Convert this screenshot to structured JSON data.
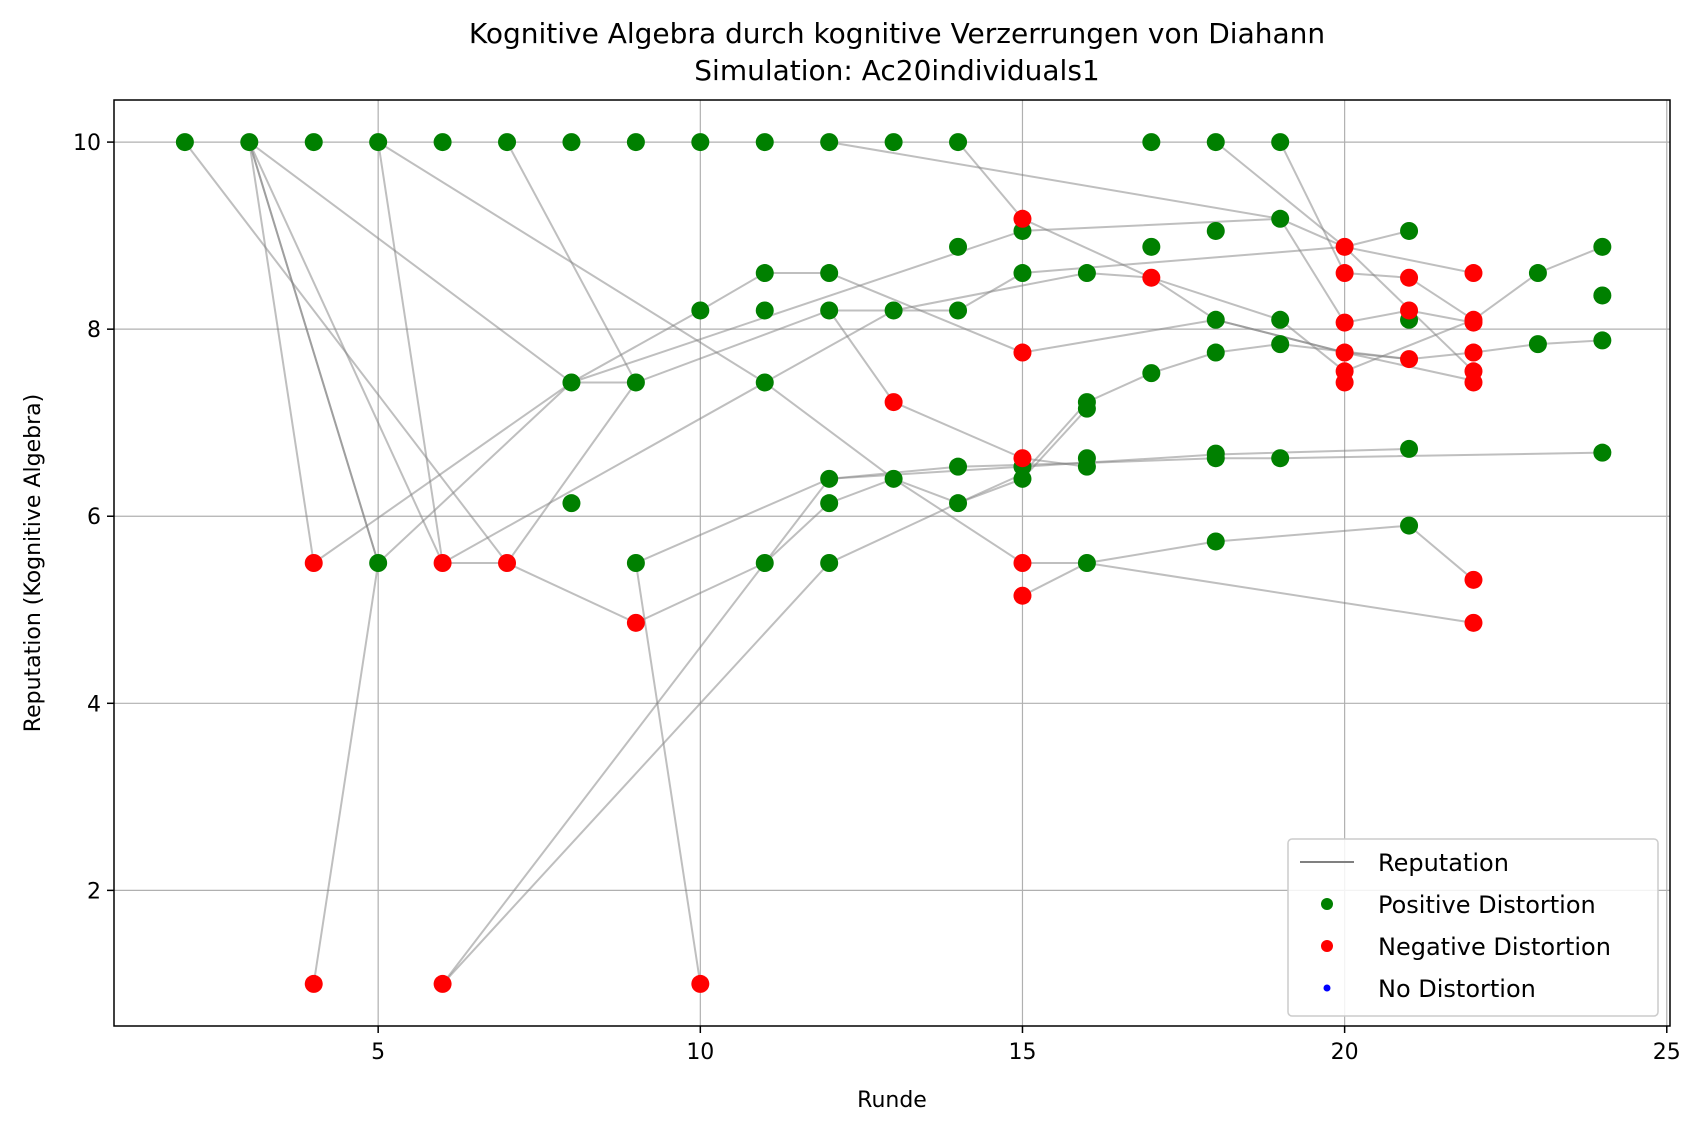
{
  "chart_data": {
    "type": "scatter",
    "title": "Kognitive Algebra durch kognitive Verzerrungen von Diahann",
    "subtitle": "Simulation: Ac20individuals1",
    "xlabel": "Runde",
    "ylabel": "Reputation (Kognitive Algebra)",
    "xlim": [
      0.9,
      25.05
    ],
    "ylim": [
      0.55,
      10.45
    ],
    "xticks": [
      5,
      10,
      15,
      20,
      25
    ],
    "yticks": [
      2,
      4,
      6,
      8,
      10
    ],
    "grid": true,
    "legend_position": "lower right",
    "legend": [
      {
        "label": "Reputation",
        "kind": "line",
        "color": "#808080"
      },
      {
        "label": "Positive Distortion",
        "kind": "marker",
        "color": "#008000"
      },
      {
        "label": "Negative Distortion",
        "kind": "marker",
        "color": "#ff0000"
      },
      {
        "label": "No Distortion",
        "kind": "marker-small",
        "color": "#0000ff"
      }
    ],
    "colors": {
      "positive": "#008000",
      "negative": "#ff0000",
      "neutral": "#0000ff",
      "line": "#808080",
      "grid": "#b0b0b0"
    },
    "reputation_paths": [
      [
        [
          2,
          10
        ],
        [
          7,
          5.5
        ],
        [
          9,
          4.86
        ],
        [
          11,
          5.5
        ],
        [
          12,
          6.14
        ],
        [
          13,
          6.4
        ],
        [
          14,
          6.14
        ],
        [
          15,
          6.4
        ],
        [
          16,
          7.15
        ]
      ],
      [
        [
          3,
          10
        ],
        [
          5,
          5.5
        ],
        [
          8,
          7.43
        ],
        [
          10,
          8.2
        ],
        [
          11,
          8.6
        ],
        [
          12,
          8.6
        ],
        [
          15,
          7.75
        ],
        [
          18,
          8.1
        ],
        [
          20,
          7.75
        ],
        [
          21,
          7.68
        ],
        [
          22,
          7.75
        ],
        [
          23,
          7.84
        ],
        [
          24,
          7.88
        ]
      ],
      [
        [
          3,
          10
        ],
        [
          6,
          5.5
        ],
        [
          11,
          7.43
        ],
        [
          13,
          8.2
        ],
        [
          16,
          8.6
        ],
        [
          17,
          8.55
        ],
        [
          19,
          8.1
        ],
        [
          20,
          7.55
        ],
        [
          22,
          8.1
        ],
        [
          23,
          8.6
        ],
        [
          24,
          8.88
        ]
      ],
      [
        [
          3,
          10
        ],
        [
          4,
          5.5
        ],
        [
          8,
          7.43
        ],
        [
          9,
          7.43
        ],
        [
          12,
          8.2
        ],
        [
          14,
          8.2
        ],
        [
          15,
          8.6
        ],
        [
          20,
          8.88
        ],
        [
          22,
          8.6
        ]
      ],
      [
        [
          3,
          10
        ],
        [
          5,
          5.5
        ],
        [
          4,
          1.0
        ]
      ],
      [
        [
          3,
          10
        ],
        [
          8,
          7.43
        ],
        [
          15,
          9.05
        ],
        [
          19,
          9.18
        ],
        [
          20,
          8.88
        ],
        [
          21,
          9.05
        ]
      ],
      [
        [
          5,
          10
        ],
        [
          6,
          5.5
        ],
        [
          7,
          5.5
        ],
        [
          9,
          7.43
        ],
        [
          7,
          10
        ]
      ],
      [
        [
          5,
          10
        ],
        [
          11,
          7.43
        ],
        [
          13,
          6.4
        ],
        [
          15,
          5.5
        ],
        [
          16,
          5.5
        ],
        [
          22,
          4.86
        ]
      ],
      [
        [
          10,
          1.0
        ],
        [
          9,
          5.5
        ],
        [
          12,
          6.4
        ],
        [
          14,
          6.53
        ],
        [
          16,
          6.57
        ],
        [
          18,
          6.62
        ],
        [
          19,
          6.62
        ],
        [
          24,
          6.68
        ]
      ],
      [
        [
          6,
          1.0
        ],
        [
          11,
          5.5
        ],
        [
          12,
          6.4
        ],
        [
          15,
          6.53
        ],
        [
          18,
          6.66
        ],
        [
          21,
          6.72
        ]
      ],
      [
        [
          6,
          1.0
        ],
        [
          12,
          5.5
        ],
        [
          14,
          6.14
        ],
        [
          15,
          6.45
        ],
        [
          16,
          7.22
        ],
        [
          17,
          7.53
        ],
        [
          18,
          7.75
        ],
        [
          19,
          7.84
        ],
        [
          21,
          7.68
        ]
      ],
      [
        [
          12,
          10
        ],
        [
          19,
          9.18
        ],
        [
          20,
          8.07
        ],
        [
          21,
          8.2
        ],
        [
          22,
          8.07
        ]
      ],
      [
        [
          12,
          8.2
        ],
        [
          13,
          7.22
        ],
        [
          15,
          6.62
        ],
        [
          16,
          6.53
        ]
      ],
      [
        [
          14,
          10
        ],
        [
          15,
          9.18
        ],
        [
          17,
          8.55
        ],
        [
          18,
          8.1
        ],
        [
          20,
          7.75
        ],
        [
          22,
          7.45
        ]
      ],
      [
        [
          18,
          10
        ],
        [
          20,
          8.88
        ],
        [
          22,
          7.55
        ]
      ],
      [
        [
          19,
          10
        ],
        [
          20,
          8.6
        ],
        [
          21,
          8.55
        ],
        [
          22,
          8.1
        ]
      ],
      [
        [
          15,
          5.15
        ],
        [
          16,
          5.5
        ],
        [
          18,
          5.73
        ],
        [
          21,
          5.9
        ],
        [
          22,
          5.32
        ]
      ]
    ],
    "positive_points": [
      [
        2,
        10
      ],
      [
        3,
        10
      ],
      [
        4,
        10
      ],
      [
        5,
        10
      ],
      [
        6,
        10
      ],
      [
        7,
        10
      ],
      [
        8,
        10
      ],
      [
        9,
        10
      ],
      [
        10,
        10
      ],
      [
        11,
        10
      ],
      [
        12,
        10
      ],
      [
        13,
        10
      ],
      [
        14,
        10
      ],
      [
        17,
        10
      ],
      [
        18,
        10
      ],
      [
        19,
        10
      ],
      [
        5,
        5.5
      ],
      [
        8,
        7.43
      ],
      [
        8,
        6.14
      ],
      [
        9,
        7.43
      ],
      [
        9,
        5.5
      ],
      [
        10,
        8.2
      ],
      [
        11,
        8.6
      ],
      [
        11,
        8.2
      ],
      [
        11,
        7.43
      ],
      [
        11,
        5.5
      ],
      [
        12,
        8.6
      ],
      [
        12,
        8.2
      ],
      [
        12,
        6.4
      ],
      [
        12,
        6.14
      ],
      [
        12,
        5.5
      ],
      [
        13,
        8.2
      ],
      [
        13,
        6.4
      ],
      [
        14,
        8.88
      ],
      [
        14,
        8.2
      ],
      [
        14,
        6.53
      ],
      [
        14,
        6.14
      ],
      [
        15,
        9.05
      ],
      [
        15,
        8.6
      ],
      [
        15,
        6.53
      ],
      [
        15,
        6.4
      ],
      [
        16,
        8.6
      ],
      [
        16,
        7.22
      ],
      [
        16,
        7.15
      ],
      [
        16,
        6.62
      ],
      [
        16,
        6.53
      ],
      [
        16,
        5.5
      ],
      [
        17,
        8.88
      ],
      [
        17,
        7.53
      ],
      [
        18,
        9.05
      ],
      [
        18,
        8.1
      ],
      [
        18,
        7.75
      ],
      [
        18,
        6.67
      ],
      [
        18,
        6.62
      ],
      [
        18,
        5.73
      ],
      [
        19,
        9.18
      ],
      [
        19,
        8.1
      ],
      [
        19,
        7.84
      ],
      [
        19,
        6.62
      ],
      [
        21,
        9.05
      ],
      [
        21,
        8.1
      ],
      [
        21,
        6.72
      ],
      [
        21,
        5.9
      ],
      [
        23,
        8.6
      ],
      [
        23,
        7.84
      ],
      [
        24,
        8.88
      ],
      [
        24,
        8.36
      ],
      [
        24,
        7.88
      ],
      [
        24,
        6.68
      ]
    ],
    "negative_points": [
      [
        4,
        5.5
      ],
      [
        4,
        1.0
      ],
      [
        6,
        5.5
      ],
      [
        6,
        1.0
      ],
      [
        7,
        5.5
      ],
      [
        9,
        4.86
      ],
      [
        10,
        1.0
      ],
      [
        13,
        7.22
      ],
      [
        15,
        9.18
      ],
      [
        15,
        7.75
      ],
      [
        15,
        6.62
      ],
      [
        15,
        5.5
      ],
      [
        15,
        5.15
      ],
      [
        17,
        8.55
      ],
      [
        20,
        8.88
      ],
      [
        20,
        8.6
      ],
      [
        20,
        8.07
      ],
      [
        20,
        7.75
      ],
      [
        20,
        7.55
      ],
      [
        20,
        7.43
      ],
      [
        21,
        8.55
      ],
      [
        21,
        8.2
      ],
      [
        21,
        7.68
      ],
      [
        22,
        8.6
      ],
      [
        22,
        8.1
      ],
      [
        22,
        8.07
      ],
      [
        22,
        7.75
      ],
      [
        22,
        7.55
      ],
      [
        22,
        7.43
      ],
      [
        22,
        5.32
      ],
      [
        22,
        4.86
      ]
    ],
    "neutral_points": []
  }
}
